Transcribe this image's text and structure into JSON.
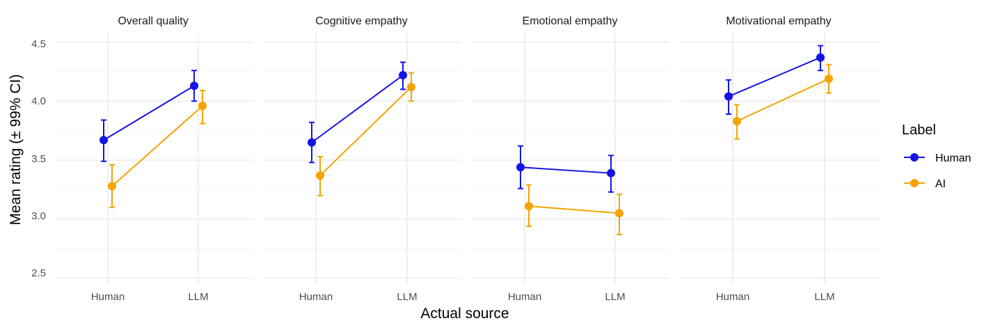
{
  "chart_data": {
    "type": "line",
    "x_categories": [
      "Human",
      "LLM"
    ],
    "xlabel": "Actual source",
    "ylabel": "Mean rating (± 99% CI)",
    "ylim": [
      2.45,
      4.58
    ],
    "yticks": [
      2.5,
      3.0,
      3.5,
      4.0,
      4.5
    ],
    "ytick_labels": [
      "2.5",
      "3.0",
      "3.5",
      "4.0",
      "4.5"
    ],
    "legend": {
      "title": "Label",
      "entries": [
        {
          "name": "Human",
          "color": "#1414e6"
        },
        {
          "name": "AI",
          "color": "#f5a300"
        }
      ],
      "position": "right"
    },
    "panels": [
      {
        "title": "Overall quality",
        "series": [
          {
            "name": "Human",
            "values": [
              3.67,
              4.13
            ],
            "ci_low": [
              3.49,
              4.0
            ],
            "ci_high": [
              3.84,
              4.26
            ]
          },
          {
            "name": "AI",
            "values": [
              3.28,
              3.96
            ],
            "ci_low": [
              3.1,
              3.81
            ],
            "ci_high": [
              3.46,
              4.09
            ]
          }
        ]
      },
      {
        "title": "Cognitive empathy",
        "series": [
          {
            "name": "Human",
            "values": [
              3.65,
              4.22
            ],
            "ci_low": [
              3.48,
              4.1
            ],
            "ci_high": [
              3.82,
              4.33
            ]
          },
          {
            "name": "AI",
            "values": [
              3.37,
              4.12
            ],
            "ci_low": [
              3.2,
              4.0
            ],
            "ci_high": [
              3.53,
              4.24
            ]
          }
        ]
      },
      {
        "title": "Emotional empathy",
        "series": [
          {
            "name": "Human",
            "values": [
              3.44,
              3.39
            ],
            "ci_low": [
              3.26,
              3.23
            ],
            "ci_high": [
              3.62,
              3.54
            ]
          },
          {
            "name": "AI",
            "values": [
              3.11,
              3.05
            ],
            "ci_low": [
              2.94,
              2.87
            ],
            "ci_high": [
              3.29,
              3.21
            ]
          }
        ]
      },
      {
        "title": "Motivational empathy",
        "series": [
          {
            "name": "Human",
            "values": [
              4.04,
              4.37
            ],
            "ci_low": [
              3.89,
              4.26
            ],
            "ci_high": [
              4.18,
              4.47
            ]
          },
          {
            "name": "AI",
            "values": [
              3.83,
              4.19
            ],
            "ci_low": [
              3.68,
              4.07
            ],
            "ci_high": [
              3.97,
              4.31
            ]
          }
        ]
      }
    ]
  }
}
